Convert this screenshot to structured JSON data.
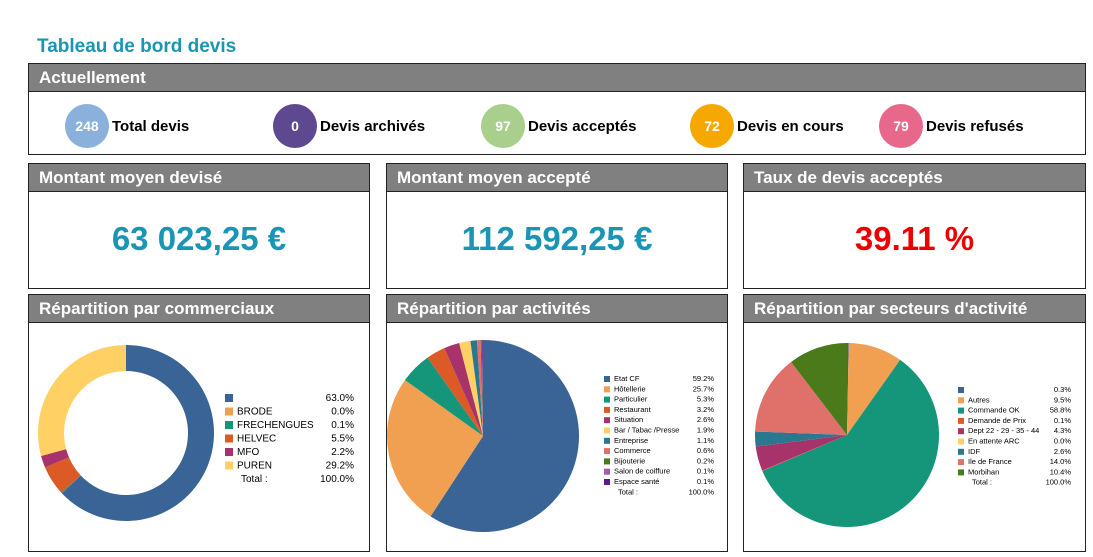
{
  "page": {
    "title": "Tableau de bord devis"
  },
  "actuellement": {
    "header": "Actuellement",
    "items": [
      {
        "count": "248",
        "label": "Total devis",
        "color": "#8ab0dc"
      },
      {
        "count": "0",
        "label": "Devis archivés",
        "color": "#5e4890"
      },
      {
        "count": "97",
        "label": "Devis acceptés",
        "color": "#a8d08c"
      },
      {
        "count": "72",
        "label": "Devis en cours",
        "color": "#f5a800"
      },
      {
        "count": "79",
        "label": "Devis refusés",
        "color": "#e8688c"
      }
    ]
  },
  "kpis": [
    {
      "header": "Montant moyen devisé",
      "value": "63 023,25 €",
      "color": "#1a96b4"
    },
    {
      "header": "Montant moyen accepté",
      "value": "112 592,25 €",
      "color": "#1a96b4"
    },
    {
      "header": "Taux de devis acceptés",
      "value": "39.11 %",
      "color": "#ee0000"
    }
  ],
  "chart_data": [
    {
      "type": "pie",
      "variant": "donut",
      "title": "Répartition par commerciaux",
      "labels": [
        "",
        "BRODE",
        "FRECHENGUES",
        "HELVEC",
        "MFO",
        "PUREN"
      ],
      "values": [
        63.0,
        0.0,
        0.1,
        5.5,
        2.2,
        29.2
      ],
      "value_labels": [
        "63.0%",
        "0.0%",
        "0.1%",
        "5.5%",
        "2.2%",
        "29.2%"
      ],
      "colors": [
        "#3b6496",
        "#f0a050",
        "#15957a",
        "#dc5a26",
        "#a8326a",
        "#ffd064"
      ],
      "total_label": "Total :",
      "total_value": "100.0%",
      "legend_position": "right"
    },
    {
      "type": "pie",
      "title": "Répartition par activités",
      "labels": [
        "Etat CF",
        "Hôtellerie",
        "Particulier",
        "Restaurant",
        "Situation",
        "Bar / Tabac /Presse",
        "Entreprise",
        "Commerce",
        "Bijouterie",
        "Salon de coiffure",
        "Espace santé"
      ],
      "values": [
        59.2,
        25.7,
        5.3,
        3.2,
        2.6,
        1.9,
        1.1,
        0.6,
        0.2,
        0.1,
        0.1
      ],
      "value_labels": [
        "59.2%",
        "25.7%",
        "5.3%",
        "3.2%",
        "2.6%",
        "1.9%",
        "1.1%",
        "0.6%",
        "0.2%",
        "0.1%",
        "0.1%"
      ],
      "colors": [
        "#3b6496",
        "#f0a050",
        "#15957a",
        "#dc5a26",
        "#a8326a",
        "#ffd064",
        "#2a7890",
        "#e0706a",
        "#4a7a1a",
        "#a060a8",
        "#5a1a8a"
      ],
      "total_label": "Total :",
      "total_value": "100.0%",
      "legend_position": "right"
    },
    {
      "type": "pie",
      "title": "Répartition par secteurs d'activité",
      "labels": [
        "",
        "Autres",
        "Commande OK",
        "Demande de Prix",
        "Dept 22 - 29 - 35 - 44",
        "En attente ARC",
        "IDF",
        "Ile de France",
        "Morbihan"
      ],
      "values": [
        0.3,
        9.5,
        58.8,
        0.1,
        4.3,
        0.0,
        2.6,
        14.0,
        10.4
      ],
      "value_labels": [
        "0.3%",
        "9.5%",
        "58.8%",
        "0.1%",
        "4.3%",
        "0.0%",
        "2.6%",
        "14.0%",
        "10.4%"
      ],
      "colors": [
        "#3b6496",
        "#f0a050",
        "#15957a",
        "#dc5a26",
        "#a8326a",
        "#ffd064",
        "#2a7890",
        "#e0706a",
        "#4a7a1a"
      ],
      "total_label": "Total :",
      "total_value": "100.0%",
      "legend_position": "right"
    }
  ]
}
